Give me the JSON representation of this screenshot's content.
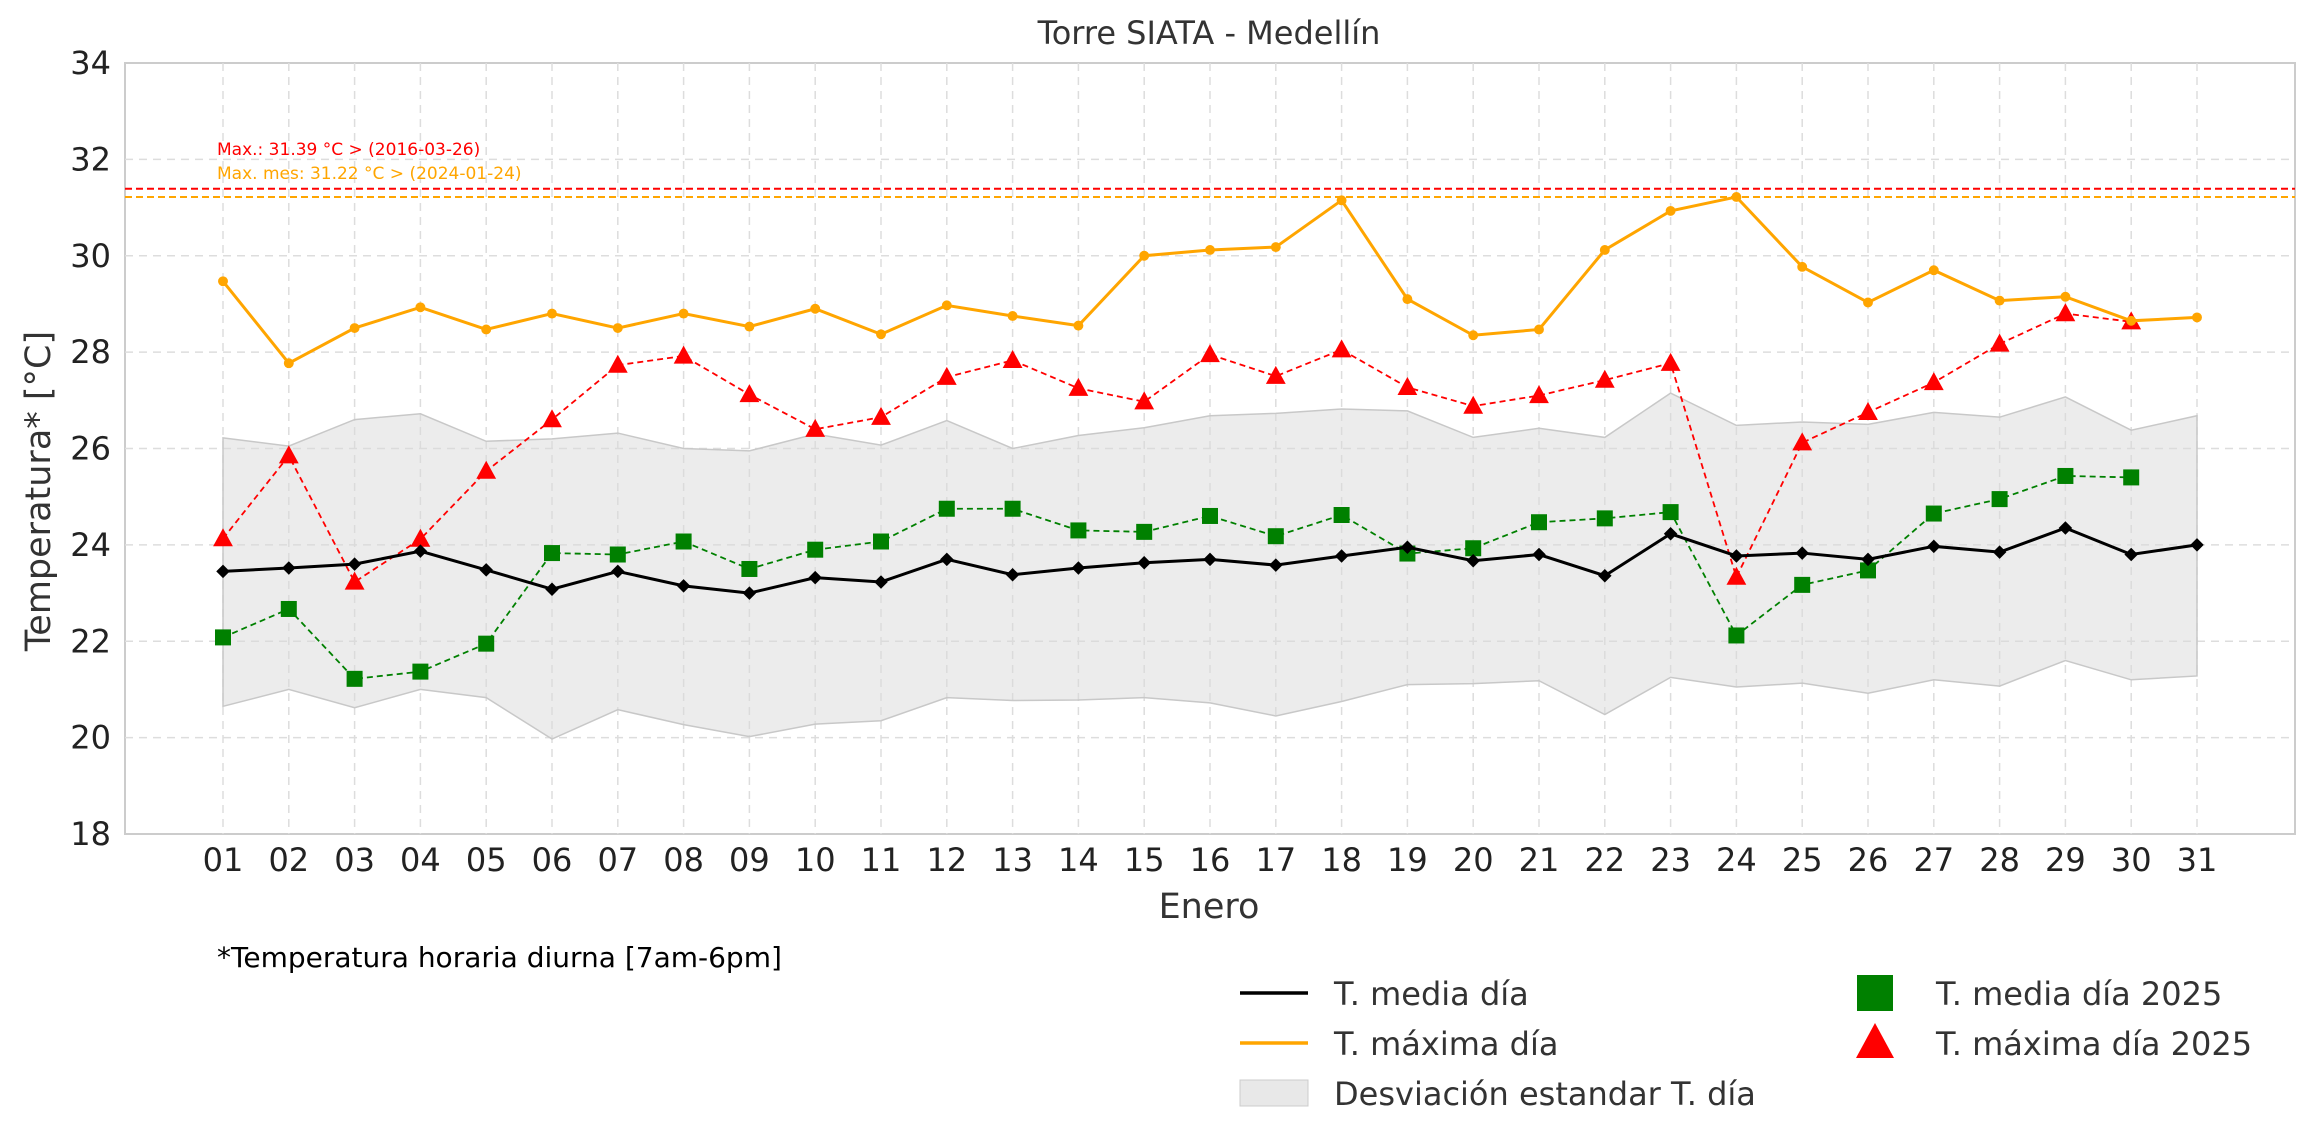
{
  "chart_data": {
    "type": "line",
    "title": "Torre SIATA - Medellín",
    "xlabel": "Enero",
    "ylabel": "Temperatura* [°C]",
    "footnote": "*Temperatura horaria diurna [7am-6pm]",
    "ylim": [
      18,
      34
    ],
    "yticks": [
      18,
      20,
      22,
      24,
      26,
      28,
      30,
      32,
      34
    ],
    "grid": true,
    "legend_position": "bottom-right",
    "categories": [
      "01",
      "02",
      "03",
      "04",
      "05",
      "06",
      "07",
      "08",
      "09",
      "10",
      "11",
      "12",
      "13",
      "14",
      "15",
      "16",
      "17",
      "18",
      "19",
      "20",
      "21",
      "22",
      "23",
      "24",
      "25",
      "26",
      "27",
      "28",
      "29",
      "30",
      "31"
    ],
    "series": [
      {
        "name": "T. media día",
        "color": "#000000",
        "marker": "diamond",
        "style": "solid",
        "values": [
          23.45,
          23.52,
          23.6,
          23.87,
          23.48,
          23.08,
          23.45,
          23.15,
          23.0,
          23.32,
          23.23,
          23.7,
          23.38,
          23.52,
          23.63,
          23.7,
          23.58,
          23.77,
          23.95,
          23.67,
          23.8,
          23.36,
          24.23,
          23.77,
          23.83,
          23.7,
          23.97,
          23.85,
          24.35,
          23.8,
          24.0
        ]
      },
      {
        "name": "T. máxima día",
        "color": "#ffa500",
        "marker": "circle",
        "style": "solid",
        "values": [
          29.47,
          27.77,
          28.5,
          28.93,
          28.47,
          28.8,
          28.5,
          28.8,
          28.53,
          28.9,
          28.37,
          28.97,
          28.75,
          28.55,
          30.0,
          30.12,
          30.18,
          31.15,
          29.1,
          28.35,
          28.47,
          30.12,
          30.93,
          31.22,
          29.77,
          29.03,
          29.7,
          29.07,
          29.15,
          28.65,
          28.72
        ]
      },
      {
        "name": "T. media día 2025",
        "color": "#008000",
        "marker": "square",
        "style": "dashed",
        "values": [
          22.08,
          22.67,
          21.22,
          21.37,
          21.95,
          23.83,
          23.8,
          24.07,
          23.5,
          23.9,
          24.07,
          24.75,
          24.75,
          24.3,
          24.27,
          24.6,
          24.18,
          24.62,
          23.82,
          23.93,
          24.47,
          24.55,
          24.68,
          22.12,
          23.17,
          23.47,
          24.65,
          24.95,
          25.43,
          25.4,
          null
        ]
      },
      {
        "name": "T. máxima día 2025",
        "color": "#ff0000",
        "marker": "triangle",
        "style": "dashed",
        "values": [
          24.13,
          25.85,
          23.23,
          24.12,
          25.53,
          26.6,
          27.73,
          27.92,
          27.12,
          26.4,
          26.65,
          27.48,
          27.83,
          27.25,
          26.97,
          27.95,
          27.5,
          28.05,
          27.27,
          26.88,
          27.1,
          27.42,
          27.77,
          23.33,
          26.12,
          26.75,
          27.37,
          28.17,
          28.8,
          28.63,
          null
        ]
      }
    ],
    "band": {
      "name": "Desviación estandar T. día",
      "color": "#d9d9d9",
      "upper": [
        26.22,
        26.05,
        26.6,
        26.72,
        26.15,
        26.2,
        26.32,
        26.0,
        25.95,
        26.3,
        26.07,
        26.58,
        26.0,
        26.27,
        26.43,
        26.68,
        26.73,
        26.82,
        26.78,
        26.23,
        26.42,
        26.23,
        27.15,
        26.48,
        26.55,
        26.5,
        26.75,
        26.65,
        27.07,
        26.38,
        26.68
      ],
      "lower": [
        20.65,
        21.0,
        20.62,
        21.0,
        20.83,
        19.97,
        20.58,
        20.27,
        20.02,
        20.28,
        20.35,
        20.83,
        20.77,
        20.78,
        20.83,
        20.72,
        20.45,
        20.75,
        21.1,
        21.12,
        21.18,
        20.48,
        21.25,
        21.05,
        21.13,
        20.92,
        21.2,
        21.07,
        21.6,
        21.2,
        21.28
      ]
    },
    "reference_lines": [
      {
        "label": "Max.: 31.39 °C  >  (2016-03-26)",
        "value": 31.39,
        "color": "#ff0000"
      },
      {
        "label": "Max. mes: 31.22 °C  >  (2024-01-24)",
        "value": 31.22,
        "color": "#ffa500"
      }
    ]
  }
}
